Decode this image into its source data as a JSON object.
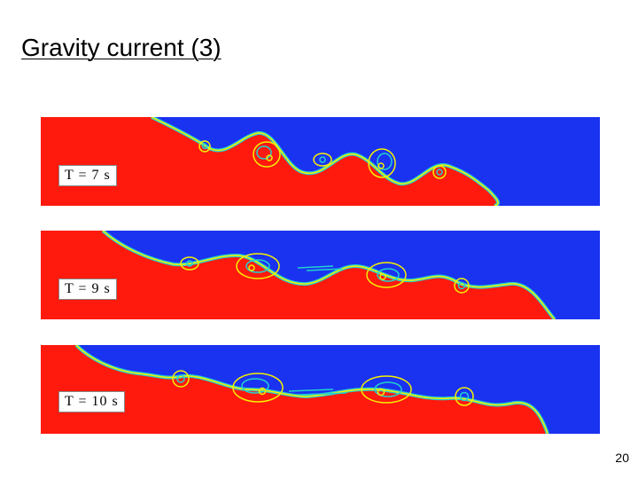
{
  "slide": {
    "title": "Gravity current (3)",
    "page_number": "20"
  },
  "colors": {
    "heavy_fluid": "#ff1a0d",
    "light_fluid": "#1a33f0",
    "interface": "#f5f000",
    "interface_edge": "#22d0d0"
  },
  "panels": [
    {
      "label": "T = 7 s"
    },
    {
      "label": "T = 9 s"
    },
    {
      "label": "T = 10 s"
    }
  ]
}
